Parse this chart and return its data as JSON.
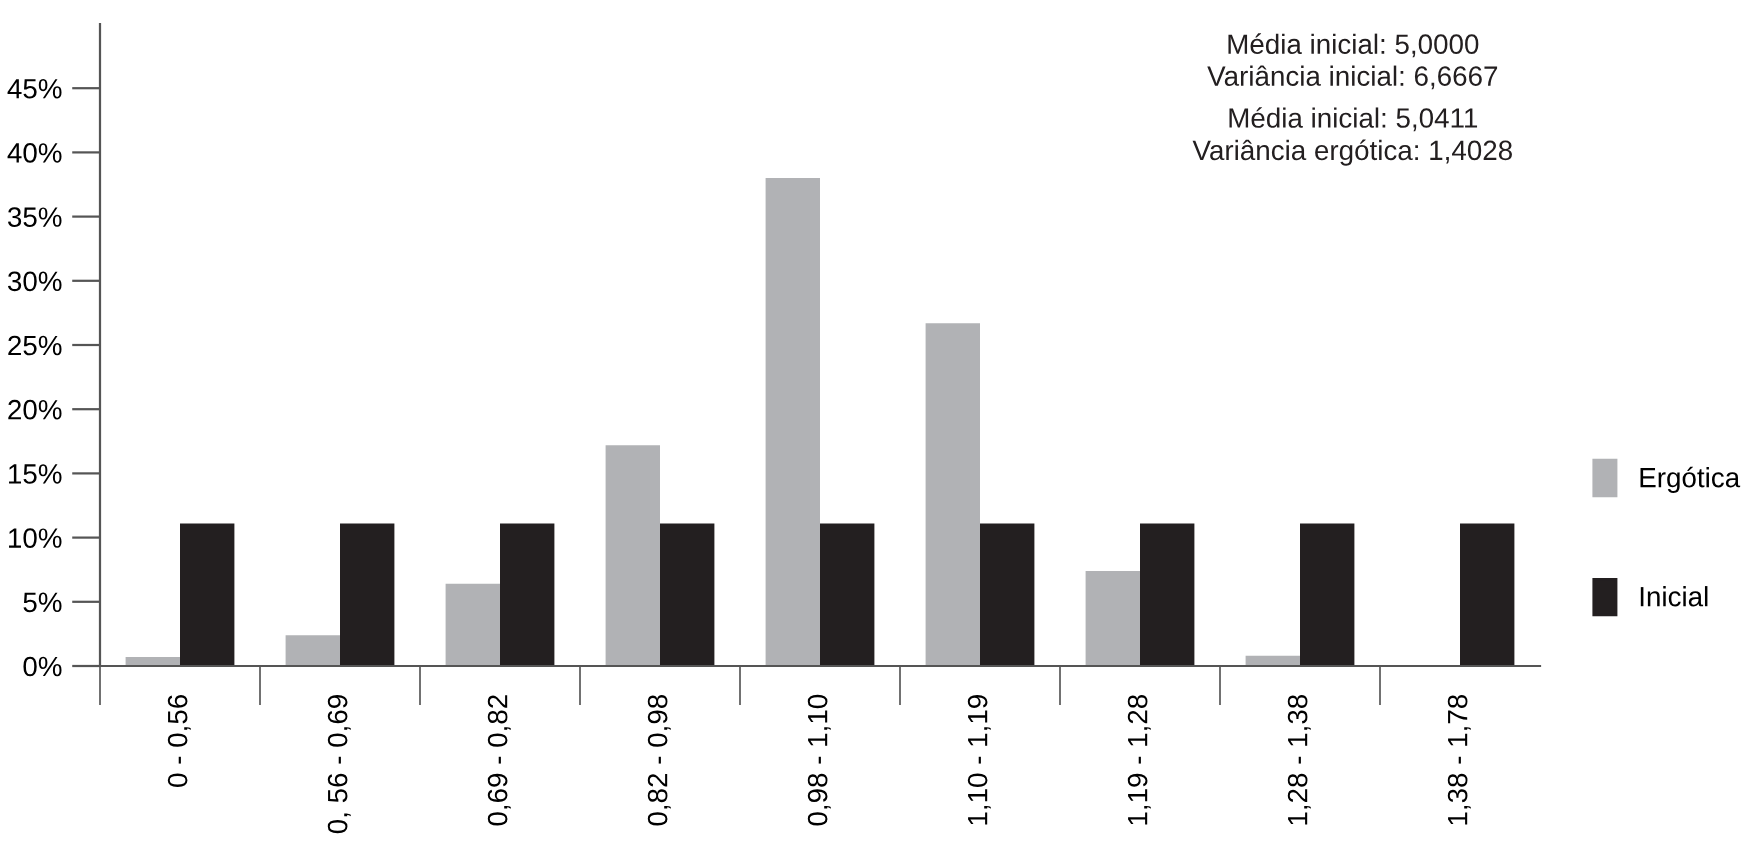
{
  "chart_data": {
    "type": "bar",
    "categories": [
      "0 - 0,56",
      "0, 56 - 0,69",
      "0,69 - 0,82",
      "0,82 - 0,98",
      "0,98 - 1,10",
      "1,10 - 1,19",
      "1,19 - 1,28",
      "1,28 - 1,38",
      "1,38 - 1,78"
    ],
    "series": [
      {
        "name": "Ergótica",
        "color": "#b1b2b5",
        "values": [
          0.7,
          2.4,
          6.4,
          17.2,
          38.0,
          26.7,
          7.4,
          0.8,
          null
        ]
      },
      {
        "name": "Inicial",
        "color": "#231f20",
        "values": [
          11.1,
          11.1,
          11.1,
          11.1,
          11.1,
          11.1,
          11.1,
          11.1,
          11.1
        ]
      }
    ],
    "ylim": [
      0,
      50
    ],
    "yticks": [
      {
        "value": 0,
        "label": "0%"
      },
      {
        "value": 5,
        "label": "5%"
      },
      {
        "value": 10,
        "label": "10%"
      },
      {
        "value": 15,
        "label": "15%"
      },
      {
        "value": 20,
        "label": "20%"
      },
      {
        "value": 25,
        "label": "25%"
      },
      {
        "value": 30,
        "label": "30%"
      },
      {
        "value": 35,
        "label": "35%"
      },
      {
        "value": 40,
        "label": "40%"
      },
      {
        "value": 45,
        "label": "45%"
      }
    ],
    "annotations": [
      "Média inicial: 5,0000\nVariância inicial: 6,6667",
      "Média inicial: 5,0411\nVariância ergótica: 1,4028"
    ],
    "legend": "right",
    "grid": false
  }
}
